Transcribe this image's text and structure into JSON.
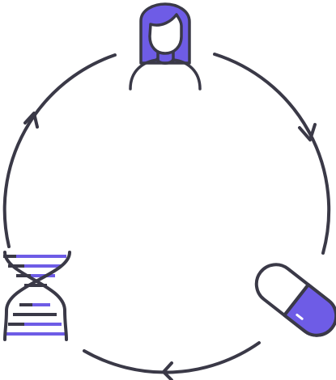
{
  "diagram": {
    "type": "cycle",
    "nodes": [
      {
        "id": "person",
        "icon": "person-icon"
      },
      {
        "id": "capsule",
        "icon": "capsule-icon"
      },
      {
        "id": "dna",
        "icon": "dna-helix-icon"
      }
    ],
    "flow": [
      "person",
      "capsule",
      "dna",
      "person"
    ],
    "direction": "clockwise"
  },
  "colors": {
    "stroke": "#3a3947",
    "accent": "#6e5ce6",
    "background": "#ffffff"
  }
}
